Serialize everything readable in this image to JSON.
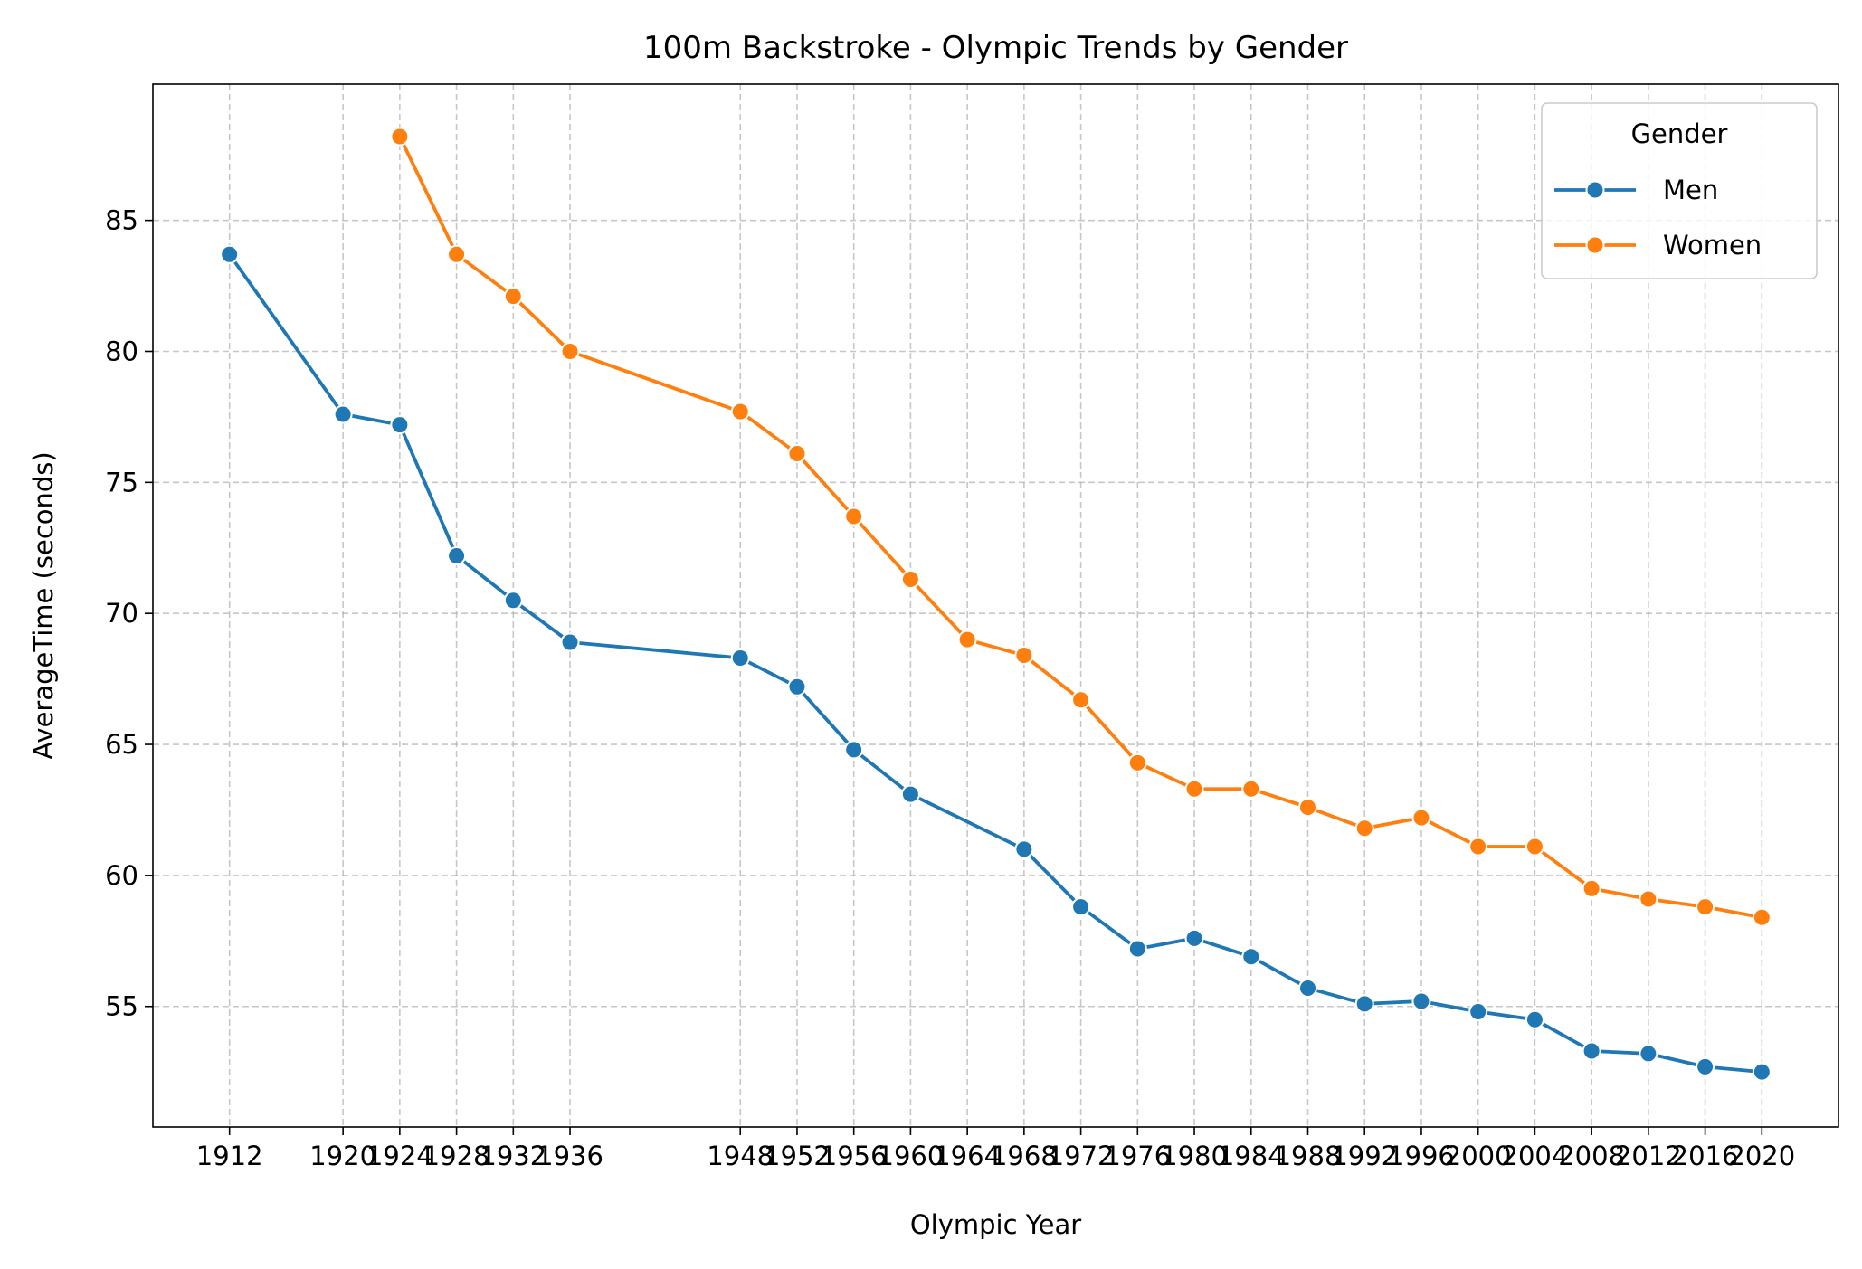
{
  "chart_data": {
    "type": "line",
    "title": "100m Backstroke - Olympic Trends by Gender",
    "xlabel": "Olympic Year",
    "ylabel": "AverageTime (seconds)",
    "x": [
      1912,
      1920,
      1924,
      1928,
      1932,
      1936,
      1948,
      1952,
      1956,
      1960,
      1964,
      1968,
      1972,
      1976,
      1980,
      1984,
      1988,
      1992,
      1996,
      2000,
      2004,
      2008,
      2012,
      2016,
      2020
    ],
    "x_tick_labels": [
      "1912",
      "1920",
      "1924",
      "1928",
      "1932",
      "1936",
      "1948",
      "1952",
      "1956",
      "1960",
      "1964",
      "1968",
      "1972",
      "1976",
      "1980",
      "1984",
      "1988",
      "1992",
      "1996",
      "2000",
      "2004",
      "2008",
      "2012",
      "2016",
      "2020"
    ],
    "xlim": [
      1906.6,
      2025.4
    ],
    "ylim": [
      50.4,
      90.2
    ],
    "y_ticks": [
      55,
      60,
      65,
      70,
      75,
      80,
      85
    ],
    "y_tick_labels": [
      "55",
      "60",
      "65",
      "70",
      "75",
      "80",
      "85"
    ],
    "grid": true,
    "legend": {
      "title": "Gender",
      "placement": "top-right"
    },
    "series": [
      {
        "name": "Men",
        "color": "#1f77b4",
        "x": [
          1912,
          1920,
          1924,
          1928,
          1932,
          1936,
          1948,
          1952,
          1956,
          1960,
          1968,
          1972,
          1976,
          1980,
          1984,
          1988,
          1992,
          1996,
          2000,
          2004,
          2008,
          2012,
          2016,
          2020
        ],
        "values": [
          83.7,
          77.6,
          77.2,
          72.2,
          70.5,
          68.9,
          68.3,
          67.2,
          64.8,
          63.1,
          61.0,
          58.8,
          57.2,
          57.6,
          56.9,
          55.7,
          55.1,
          55.2,
          54.8,
          54.5,
          53.3,
          53.2,
          52.7,
          52.5
        ]
      },
      {
        "name": "Women",
        "color": "#ff7f0e",
        "x": [
          1924,
          1928,
          1932,
          1936,
          1948,
          1952,
          1956,
          1960,
          1964,
          1968,
          1972,
          1976,
          1980,
          1984,
          1988,
          1992,
          1996,
          2000,
          2004,
          2008,
          2012,
          2016,
          2020
        ],
        "values": [
          88.2,
          83.7,
          82.1,
          80.0,
          77.7,
          76.1,
          73.7,
          71.3,
          69.0,
          68.4,
          66.7,
          64.3,
          63.3,
          63.3,
          62.6,
          61.8,
          62.2,
          61.1,
          61.1,
          59.5,
          59.1,
          58.8,
          58.4
        ]
      }
    ]
  }
}
